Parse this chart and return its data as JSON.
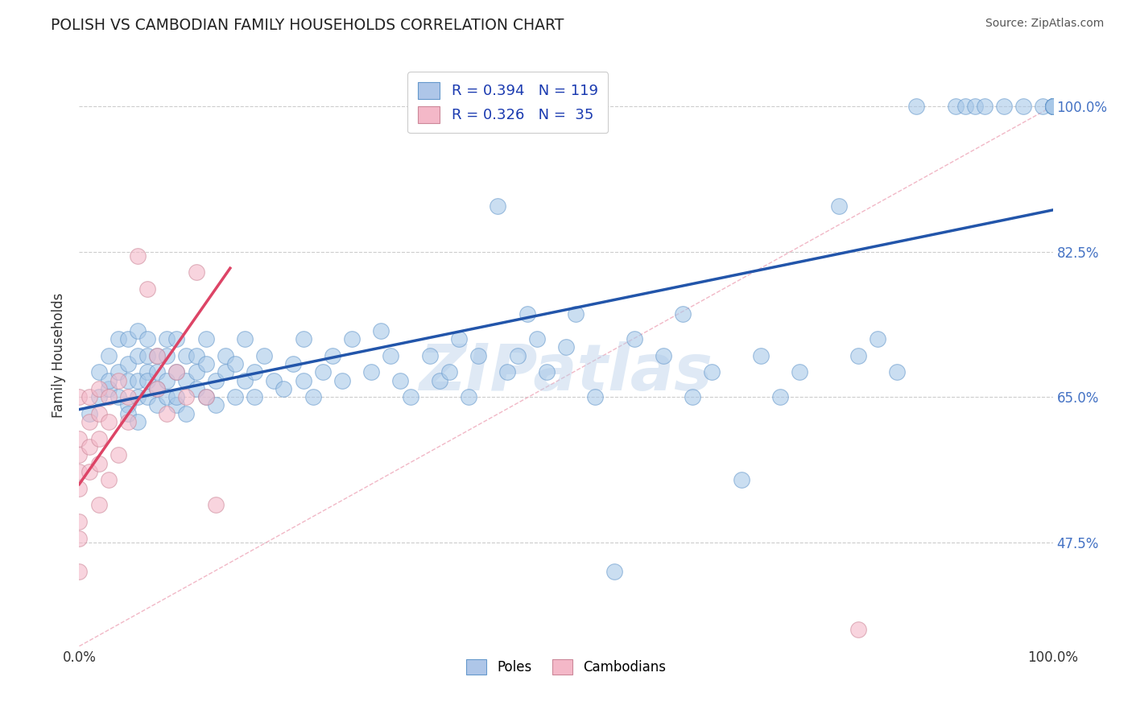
{
  "title": "POLISH VS CAMBODIAN FAMILY HOUSEHOLDS CORRELATION CHART",
  "source_text": "Source: ZipAtlas.com",
  "ylabel": "Family Households",
  "xlim": [
    0,
    1
  ],
  "ylim": [
    0.35,
    1.05
  ],
  "y_tick_values": [
    0.475,
    0.65,
    0.825,
    1.0
  ],
  "y_tick_labels_right": [
    "47.5%",
    "65.0%",
    "82.5%",
    "100.0%"
  ],
  "x_tick_labels": [
    "0.0%",
    "100.0%"
  ],
  "watermark": "ZIPatlas",
  "poles_color": "#a8c8e8",
  "poles_edge_color": "#6699cc",
  "cambodians_color": "#f4b8c8",
  "cambodians_edge_color": "#cc8899",
  "poles_line_color": "#2255aa",
  "cambodians_line_color": "#dd4466",
  "diagonal_color": "#f0b0c0",
  "grid_color": "#cccccc",
  "background_color": "#ffffff",
  "title_color": "#222222",
  "source_color": "#555555",
  "ylabel_color": "#333333",
  "right_tick_color": "#4472c4",
  "legend_label_color": "#1a3ab0",
  "poles_line_x": [
    0.0,
    1.0
  ],
  "poles_line_y": [
    0.635,
    0.875
  ],
  "cambodians_line_x": [
    0.0,
    0.155
  ],
  "cambodians_line_y": [
    0.545,
    0.805
  ],
  "poles_x": [
    0.01,
    0.02,
    0.02,
    0.03,
    0.03,
    0.03,
    0.04,
    0.04,
    0.04,
    0.05,
    0.05,
    0.05,
    0.05,
    0.05,
    0.06,
    0.06,
    0.06,
    0.06,
    0.06,
    0.07,
    0.07,
    0.07,
    0.07,
    0.07,
    0.08,
    0.08,
    0.08,
    0.08,
    0.09,
    0.09,
    0.09,
    0.09,
    0.1,
    0.1,
    0.1,
    0.1,
    0.11,
    0.11,
    0.11,
    0.12,
    0.12,
    0.12,
    0.13,
    0.13,
    0.13,
    0.14,
    0.14,
    0.15,
    0.15,
    0.16,
    0.16,
    0.17,
    0.17,
    0.18,
    0.18,
    0.19,
    0.2,
    0.21,
    0.22,
    0.23,
    0.23,
    0.24,
    0.25,
    0.26,
    0.27,
    0.28,
    0.3,
    0.31,
    0.32,
    0.33,
    0.34,
    0.36,
    0.37,
    0.38,
    0.39,
    0.4,
    0.41,
    0.43,
    0.44,
    0.45,
    0.46,
    0.47,
    0.48,
    0.5,
    0.51,
    0.53,
    0.55,
    0.57,
    0.6,
    0.62,
    0.63,
    0.65,
    0.68,
    0.7,
    0.72,
    0.74,
    0.78,
    0.8,
    0.82,
    0.84,
    0.86,
    0.9,
    0.91,
    0.92,
    0.93,
    0.95,
    0.97,
    0.99,
    1.0,
    1.0,
    1.0,
    1.0,
    1.0,
    1.0,
    1.0,
    1.0,
    1.0,
    1.0,
    1.0
  ],
  "poles_y": [
    0.63,
    0.65,
    0.68,
    0.66,
    0.7,
    0.67,
    0.68,
    0.72,
    0.65,
    0.64,
    0.69,
    0.72,
    0.67,
    0.63,
    0.7,
    0.73,
    0.67,
    0.65,
    0.62,
    0.68,
    0.72,
    0.7,
    0.65,
    0.67,
    0.66,
    0.7,
    0.64,
    0.68,
    0.67,
    0.65,
    0.7,
    0.72,
    0.64,
    0.68,
    0.72,
    0.65,
    0.67,
    0.7,
    0.63,
    0.66,
    0.7,
    0.68,
    0.65,
    0.69,
    0.72,
    0.67,
    0.64,
    0.68,
    0.7,
    0.65,
    0.69,
    0.67,
    0.72,
    0.65,
    0.68,
    0.7,
    0.67,
    0.66,
    0.69,
    0.67,
    0.72,
    0.65,
    0.68,
    0.7,
    0.67,
    0.72,
    0.68,
    0.73,
    0.7,
    0.67,
    0.65,
    0.7,
    0.67,
    0.68,
    0.72,
    0.65,
    0.7,
    0.88,
    0.68,
    0.7,
    0.75,
    0.72,
    0.68,
    0.71,
    0.75,
    0.65,
    0.44,
    0.72,
    0.7,
    0.75,
    0.65,
    0.68,
    0.55,
    0.7,
    0.65,
    0.68,
    0.88,
    0.7,
    0.72,
    0.68,
    1.0,
    1.0,
    1.0,
    1.0,
    1.0,
    1.0,
    1.0,
    1.0,
    1.0,
    1.0,
    1.0,
    1.0,
    1.0,
    1.0,
    1.0,
    1.0,
    1.0,
    1.0,
    1.0
  ],
  "cambodians_x": [
    0.0,
    0.0,
    0.0,
    0.0,
    0.0,
    0.0,
    0.0,
    0.0,
    0.01,
    0.01,
    0.01,
    0.01,
    0.02,
    0.02,
    0.02,
    0.02,
    0.02,
    0.03,
    0.03,
    0.03,
    0.04,
    0.04,
    0.05,
    0.05,
    0.06,
    0.07,
    0.08,
    0.08,
    0.09,
    0.1,
    0.11,
    0.12,
    0.13,
    0.14,
    0.8
  ],
  "cambodians_y": [
    0.56,
    0.6,
    0.54,
    0.65,
    0.58,
    0.5,
    0.48,
    0.44,
    0.62,
    0.65,
    0.59,
    0.56,
    0.66,
    0.63,
    0.6,
    0.57,
    0.52,
    0.65,
    0.62,
    0.55,
    0.67,
    0.58,
    0.65,
    0.62,
    0.82,
    0.78,
    0.66,
    0.7,
    0.63,
    0.68,
    0.65,
    0.8,
    0.65,
    0.52,
    0.37
  ]
}
